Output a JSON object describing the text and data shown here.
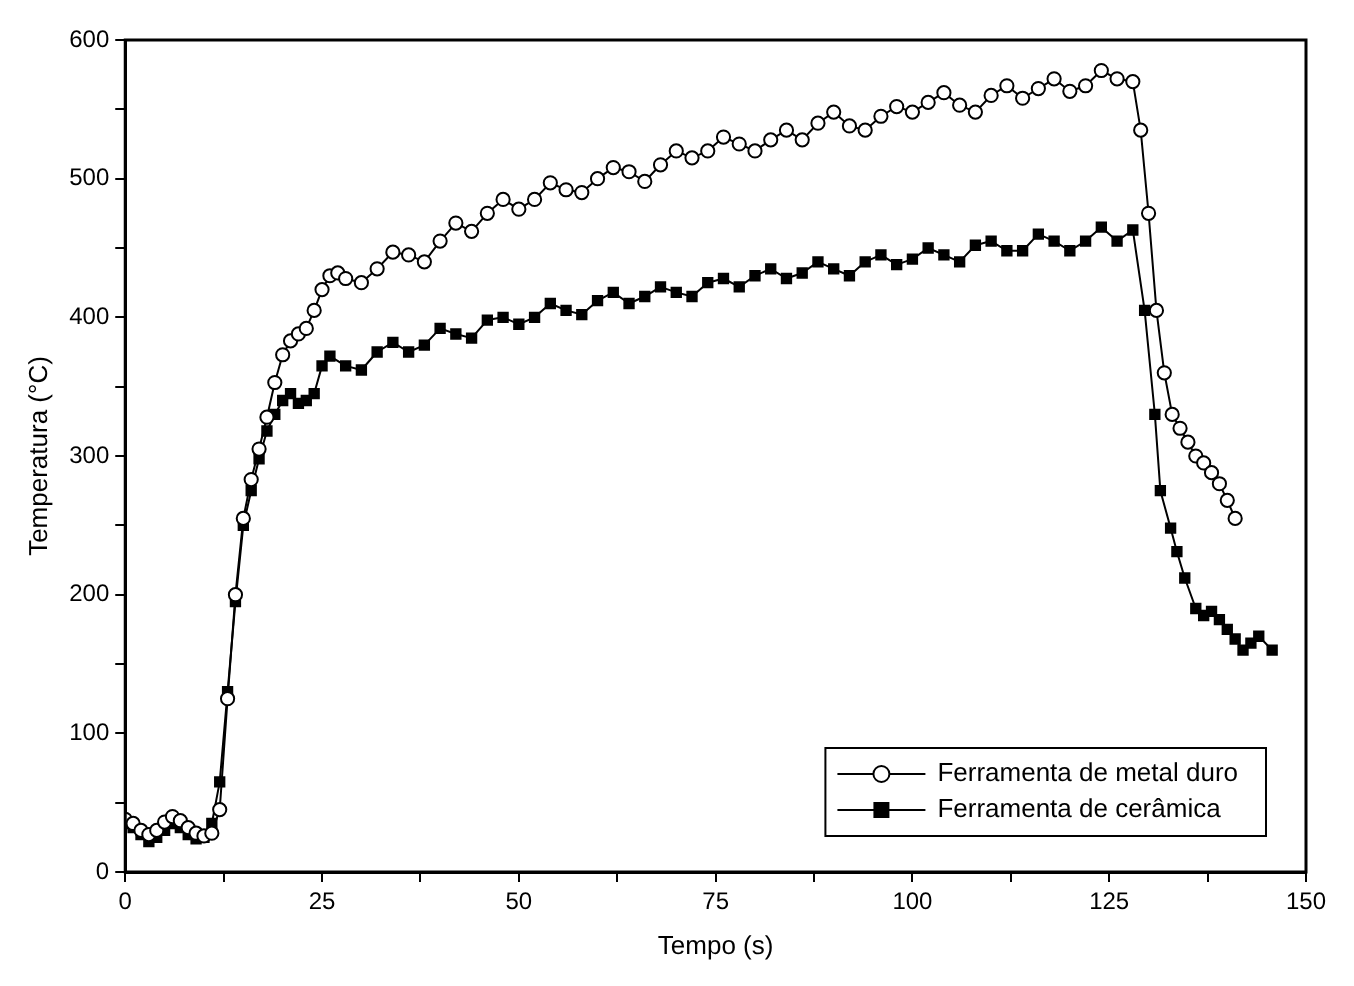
{
  "chart_data": {
    "type": "line",
    "xlabel": "Tempo (s)",
    "ylabel": "Temperatura (°C)",
    "xlim": [
      0,
      150
    ],
    "ylim": [
      0,
      600
    ],
    "xticks": [
      0,
      {
        "value": 12.5,
        "label": null
      },
      25,
      {
        "value": 37.5,
        "label": null
      },
      50,
      {
        "value": 62.5,
        "label": null
      },
      75,
      {
        "value": 87.5,
        "label": null
      },
      100,
      {
        "value": 112.5,
        "label": null
      },
      125,
      {
        "value": 137.5,
        "label": null
      },
      150
    ],
    "yticks": [
      0,
      {
        "value": 50,
        "label": null
      },
      100,
      {
        "value": 150,
        "label": null
      },
      200,
      {
        "value": 250,
        "label": null
      },
      300,
      {
        "value": 350,
        "label": null
      },
      400,
      {
        "value": 450,
        "label": null
      },
      500,
      {
        "value": 550,
        "label": null
      },
      600
    ],
    "grid": false,
    "legend": "bottom right",
    "series": [
      {
        "name": "Ferramenta de metal duro",
        "color": "#000000",
        "marker": "circle",
        "x": [
          0,
          1,
          2,
          3,
          4,
          5,
          6,
          7,
          8,
          9,
          10,
          11,
          12,
          13,
          14,
          15,
          16,
          17,
          18,
          19,
          20,
          21,
          22,
          23,
          24,
          25,
          26,
          27,
          28,
          30,
          32,
          34,
          36,
          38,
          40,
          42,
          44,
          46,
          48,
          50,
          52,
          54,
          56,
          58,
          60,
          62,
          64,
          66,
          68,
          70,
          72,
          74,
          76,
          78,
          80,
          82,
          84,
          86,
          88,
          90,
          92,
          94,
          96,
          98,
          100,
          102,
          104,
          106,
          108,
          110,
          112,
          114,
          116,
          118,
          120,
          122,
          124,
          126,
          128,
          129,
          130,
          131,
          132,
          133,
          134,
          135,
          136,
          137,
          138,
          139,
          140,
          141
        ],
        "values": [
          38,
          35,
          30,
          27,
          30,
          36,
          40,
          37,
          32,
          28,
          26,
          28,
          45,
          125,
          200,
          255,
          283,
          305,
          328,
          353,
          373,
          383,
          388,
          392,
          405,
          420,
          430,
          432,
          428,
          425,
          435,
          447,
          445,
          440,
          455,
          468,
          462,
          475,
          485,
          478,
          485,
          497,
          492,
          490,
          500,
          508,
          505,
          498,
          510,
          520,
          515,
          520,
          530,
          525,
          520,
          528,
          535,
          528,
          540,
          548,
          538,
          535,
          545,
          552,
          548,
          555,
          562,
          553,
          548,
          560,
          567,
          558,
          565,
          572,
          563,
          567,
          578,
          572,
          570,
          535,
          475,
          405,
          360,
          330,
          320,
          310,
          300,
          295,
          288,
          280,
          268,
          255
        ]
      },
      {
        "name": "Ferramenta de cerâmica",
        "color": "#000000",
        "marker": "square",
        "x": [
          0,
          1,
          2,
          3,
          4,
          5,
          6,
          7,
          8,
          9,
          10,
          11,
          12,
          13,
          14,
          15,
          16,
          17,
          18,
          19,
          20,
          21,
          22,
          23,
          24,
          25,
          26,
          28,
          30,
          32,
          34,
          36,
          38,
          40,
          42,
          44,
          46,
          48,
          50,
          52,
          54,
          56,
          58,
          60,
          62,
          64,
          66,
          68,
          70,
          72,
          74,
          76,
          78,
          80,
          82,
          84,
          86,
          88,
          90,
          92,
          94,
          96,
          98,
          100,
          102,
          104,
          106,
          108,
          110,
          112,
          114,
          116,
          118,
          120,
          122,
          124,
          126,
          128,
          129.5,
          130.8,
          131.5,
          132.8,
          133.6,
          134.6,
          136,
          137,
          138,
          139,
          140,
          141,
          142,
          143,
          144,
          145.7
        ],
        "values": [
          35,
          32,
          27,
          22,
          25,
          30,
          35,
          32,
          27,
          24,
          25,
          35,
          65,
          130,
          195,
          250,
          275,
          298,
          318,
          330,
          340,
          345,
          338,
          340,
          345,
          365,
          372,
          365,
          362,
          375,
          382,
          375,
          380,
          392,
          388,
          385,
          398,
          400,
          395,
          400,
          410,
          405,
          402,
          412,
          418,
          410,
          415,
          422,
          418,
          415,
          425,
          428,
          422,
          430,
          435,
          428,
          432,
          440,
          435,
          430,
          440,
          445,
          438,
          442,
          450,
          445,
          440,
          452,
          455,
          448,
          448,
          460,
          455,
          448,
          455,
          465,
          455,
          463,
          405,
          330,
          275,
          248,
          231,
          212,
          190,
          185,
          188,
          182,
          175,
          168,
          160,
          165,
          170,
          160
        ]
      }
    ]
  }
}
